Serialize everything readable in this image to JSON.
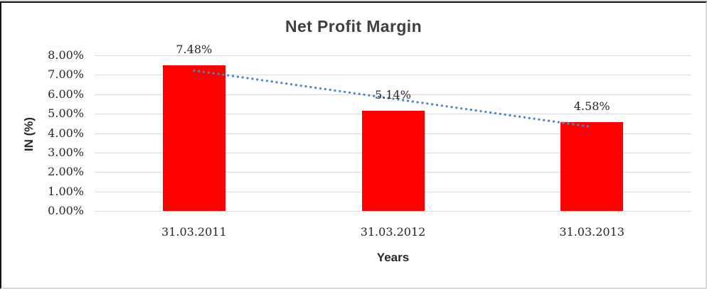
{
  "chart_data": {
    "type": "bar",
    "title": "Net Profit Margin",
    "xlabel": "Years",
    "ylabel": "IN (%)",
    "categories": [
      "31.03.2011",
      "31.03.2012",
      "31.03.2013"
    ],
    "values": [
      7.48,
      5.14,
      4.58
    ],
    "data_labels": [
      "7.48%",
      "5.14%",
      "4.58%"
    ],
    "ylim": [
      0,
      8
    ],
    "ytick_step": 1,
    "ytick_labels": [
      "0.00%",
      "1.00%",
      "2.00%",
      "3.00%",
      "4.00%",
      "5.00%",
      "6.00%",
      "7.00%",
      "8.00%"
    ],
    "grid": true,
    "legend": "none",
    "bar_color": "#ff0000",
    "trendline": {
      "type": "linear",
      "style": "dotted",
      "color": "#4a86c8",
      "start_value": 7.22,
      "end_value": 4.32
    },
    "colors": {
      "gridline": "#d9d9d9",
      "axis_text": "#262626",
      "title_text": "#3f3f3f"
    }
  }
}
